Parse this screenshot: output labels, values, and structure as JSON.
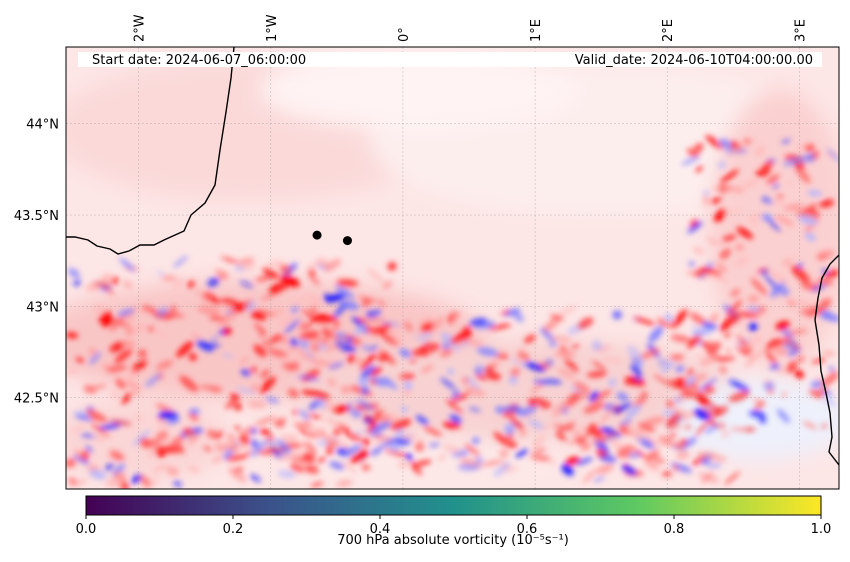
{
  "header": {
    "start_date": "Start date: 2024-06-07_06:00:00",
    "valid_date": "Valid_date: 2024-06-10T04:00:00.00"
  },
  "map": {
    "extent": {
      "lon_min": -2.55,
      "lon_max": 3.3,
      "lat_min": 42.0,
      "lat_max": 44.42
    },
    "lon_ticks": [
      {
        "value": -2,
        "label": "2°W"
      },
      {
        "value": -1,
        "label": "1°W"
      },
      {
        "value": 0,
        "label": "0°"
      },
      {
        "value": 1,
        "label": "1°E"
      },
      {
        "value": 2,
        "label": "2°E"
      },
      {
        "value": 3,
        "label": "3°E"
      }
    ],
    "lat_ticks": [
      {
        "value": 44.0,
        "label": "44°N"
      },
      {
        "value": 43.5,
        "label": "43.5°N"
      },
      {
        "value": 43.0,
        "label": "43°N"
      },
      {
        "value": 42.5,
        "label": "42.5°N"
      }
    ],
    "gridlines": true,
    "markers": [
      {
        "lon": -0.65,
        "lat": 43.39
      },
      {
        "lon": -0.42,
        "lat": 43.36
      }
    ],
    "field_colormap": [
      "#0000ff",
      "#ffffff",
      "#ff0000"
    ]
  },
  "colorbar": {
    "label": "700 hPa absolute vorticity (10⁻⁵s⁻¹)",
    "range": [
      0.0,
      1.0
    ],
    "ticks": [
      {
        "value": 0.0,
        "label": "0.0"
      },
      {
        "value": 0.2,
        "label": "0.2"
      },
      {
        "value": 0.4,
        "label": "0.4"
      },
      {
        "value": 0.6,
        "label": "0.6"
      },
      {
        "value": 0.8,
        "label": "0.8"
      },
      {
        "value": 1.0,
        "label": "1.0"
      }
    ],
    "colormap": [
      "#440154",
      "#3b528b",
      "#21918c",
      "#5ec962",
      "#fde725"
    ]
  }
}
